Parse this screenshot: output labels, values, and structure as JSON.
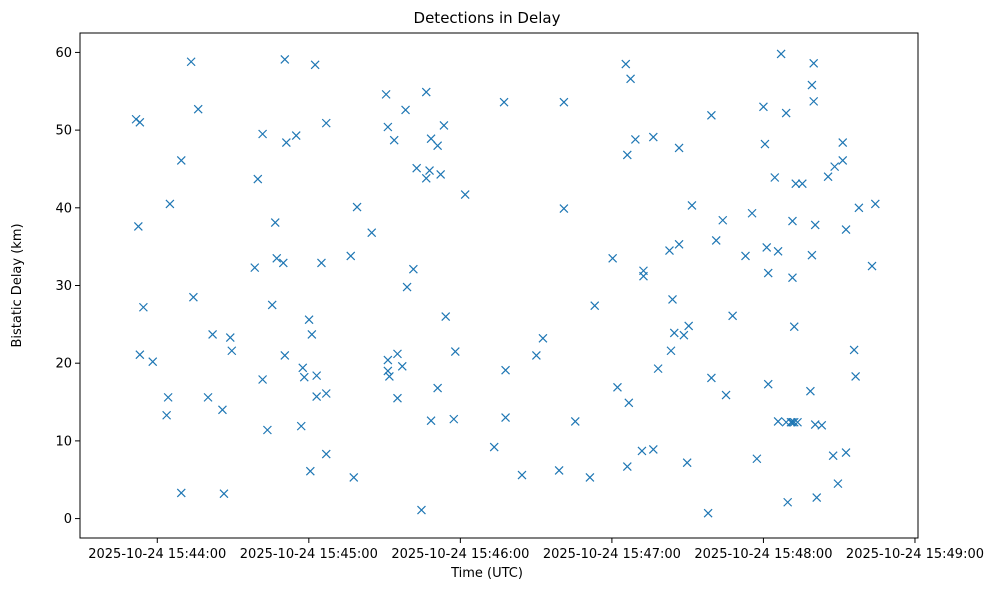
{
  "chart_data": {
    "type": "scatter",
    "title": "Detections in Delay",
    "xlabel": "Time (UTC)",
    "ylabel": "Bistatic Delay (km)",
    "marker": "x",
    "color": "#1f77b4",
    "x_unit": "seconds since 2025-10-24 15:43:00",
    "xlim": [
      29.4,
      361.2
    ],
    "ylim": [
      -2.5,
      62.5
    ],
    "x_ticks": [
      {
        "value": 60,
        "label": "2025-10-24 15:44:00"
      },
      {
        "value": 120,
        "label": "2025-10-24 15:45:00"
      },
      {
        "value": 180,
        "label": "2025-10-24 15:46:00"
      },
      {
        "value": 240,
        "label": "2025-10-24 15:47:00"
      },
      {
        "value": 300,
        "label": "2025-10-24 15:48:00"
      },
      {
        "value": 360,
        "label": "2025-10-24 15:49:00"
      }
    ],
    "y_ticks": [
      {
        "value": 0,
        "label": "0"
      },
      {
        "value": 10,
        "label": "10"
      },
      {
        "value": 20,
        "label": "20"
      },
      {
        "value": 30,
        "label": "30"
      },
      {
        "value": 40,
        "label": "40"
      },
      {
        "value": 50,
        "label": "50"
      },
      {
        "value": 60,
        "label": "60"
      }
    ],
    "points": [
      [
        51.6,
        51.4
      ],
      [
        53.1,
        51.0
      ],
      [
        52.5,
        37.6
      ],
      [
        53.1,
        21.1
      ],
      [
        54.5,
        27.2
      ],
      [
        58.2,
        20.2
      ],
      [
        63.7,
        13.3
      ],
      [
        64.3,
        15.6
      ],
      [
        65.0,
        40.5
      ],
      [
        69.5,
        46.1
      ],
      [
        69.5,
        3.3
      ],
      [
        73.4,
        58.8
      ],
      [
        74.3,
        28.5
      ],
      [
        76.2,
        52.7
      ],
      [
        80.1,
        15.6
      ],
      [
        81.9,
        23.7
      ],
      [
        85.8,
        14.0
      ],
      [
        86.4,
        3.2
      ],
      [
        88.9,
        23.3
      ],
      [
        89.5,
        21.6
      ],
      [
        98.6,
        32.3
      ],
      [
        99.8,
        43.7
      ],
      [
        101.7,
        49.5
      ],
      [
        101.7,
        17.9
      ],
      [
        103.6,
        11.4
      ],
      [
        105.5,
        27.5
      ],
      [
        106.7,
        38.1
      ],
      [
        107.3,
        33.5
      ],
      [
        109.9,
        32.9
      ],
      [
        110.5,
        59.1
      ],
      [
        110.5,
        21.0
      ],
      [
        111.1,
        48.4
      ],
      [
        115.0,
        49.3
      ],
      [
        117.0,
        11.9
      ],
      [
        117.6,
        19.4
      ],
      [
        118.2,
        18.2
      ],
      [
        120.1,
        25.6
      ],
      [
        120.6,
        6.1
      ],
      [
        121.2,
        23.7
      ],
      [
        122.5,
        58.4
      ],
      [
        123.1,
        18.4
      ],
      [
        123.1,
        15.7
      ],
      [
        125.0,
        32.9
      ],
      [
        126.9,
        50.9
      ],
      [
        126.9,
        16.1
      ],
      [
        126.9,
        8.3
      ],
      [
        136.6,
        33.8
      ],
      [
        137.8,
        5.3
      ],
      [
        139.1,
        40.1
      ],
      [
        144.9,
        36.8
      ],
      [
        150.6,
        54.6
      ],
      [
        151.3,
        50.4
      ],
      [
        151.3,
        20.4
      ],
      [
        151.3,
        19.0
      ],
      [
        151.9,
        18.3
      ],
      [
        153.8,
        48.7
      ],
      [
        155.1,
        21.2
      ],
      [
        155.1,
        15.5
      ],
      [
        157.0,
        19.6
      ],
      [
        158.3,
        52.6
      ],
      [
        158.9,
        29.8
      ],
      [
        161.4,
        32.1
      ],
      [
        162.7,
        45.1
      ],
      [
        164.6,
        1.1
      ],
      [
        166.5,
        43.8
      ],
      [
        166.5,
        54.9
      ],
      [
        167.8,
        44.8
      ],
      [
        168.4,
        48.9
      ],
      [
        168.4,
        12.6
      ],
      [
        171.0,
        48.0
      ],
      [
        171.0,
        16.8
      ],
      [
        172.2,
        44.3
      ],
      [
        173.5,
        50.6
      ],
      [
        174.2,
        26.0
      ],
      [
        177.4,
        12.8
      ],
      [
        178.0,
        21.5
      ],
      [
        181.9,
        41.7
      ],
      [
        193.4,
        9.2
      ],
      [
        197.3,
        53.6
      ],
      [
        197.9,
        19.1
      ],
      [
        197.9,
        13.0
      ],
      [
        204.4,
        5.6
      ],
      [
        210.1,
        21.0
      ],
      [
        212.7,
        23.2
      ],
      [
        219.1,
        6.2
      ],
      [
        221.0,
        53.6
      ],
      [
        221.0,
        39.9
      ],
      [
        225.5,
        12.5
      ],
      [
        231.3,
        5.3
      ],
      [
        233.2,
        27.4
      ],
      [
        240.3,
        33.5
      ],
      [
        242.2,
        16.9
      ],
      [
        245.5,
        58.5
      ],
      [
        246.1,
        46.8
      ],
      [
        246.1,
        6.7
      ],
      [
        246.7,
        14.9
      ],
      [
        247.4,
        56.6
      ],
      [
        249.3,
        48.8
      ],
      [
        251.9,
        8.7
      ],
      [
        252.5,
        31.9
      ],
      [
        252.5,
        31.2
      ],
      [
        256.4,
        49.1
      ],
      [
        256.4,
        8.9
      ],
      [
        258.3,
        19.3
      ],
      [
        262.8,
        34.5
      ],
      [
        263.4,
        21.6
      ],
      [
        264.0,
        28.2
      ],
      [
        264.7,
        23.9
      ],
      [
        266.6,
        35.3
      ],
      [
        266.6,
        47.7
      ],
      [
        268.5,
        23.6
      ],
      [
        269.8,
        7.2
      ],
      [
        270.4,
        24.8
      ],
      [
        271.7,
        40.3
      ],
      [
        278.1,
        0.7
      ],
      [
        279.4,
        18.1
      ],
      [
        279.4,
        51.9
      ],
      [
        281.3,
        35.8
      ],
      [
        283.9,
        38.4
      ],
      [
        285.2,
        15.9
      ],
      [
        287.8,
        26.1
      ],
      [
        292.9,
        33.8
      ],
      [
        295.5,
        39.3
      ],
      [
        297.4,
        7.7
      ],
      [
        300.0,
        53.0
      ],
      [
        300.6,
        48.2
      ],
      [
        301.3,
        34.9
      ],
      [
        301.9,
        17.3
      ],
      [
        301.9,
        31.6
      ],
      [
        304.5,
        43.9
      ],
      [
        305.8,
        34.4
      ],
      [
        305.8,
        12.5
      ],
      [
        307.0,
        59.8
      ],
      [
        309.0,
        12.4
      ],
      [
        309.0,
        52.2
      ],
      [
        309.6,
        2.1
      ],
      [
        310.9,
        12.4
      ],
      [
        311.5,
        38.3
      ],
      [
        311.5,
        31.0
      ],
      [
        311.5,
        12.4
      ],
      [
        312.2,
        24.7
      ],
      [
        312.2,
        12.4
      ],
      [
        312.8,
        43.1
      ],
      [
        313.5,
        12.4
      ],
      [
        315.4,
        43.1
      ],
      [
        318.6,
        16.4
      ],
      [
        319.2,
        55.8
      ],
      [
        319.2,
        33.9
      ],
      [
        319.9,
        58.6
      ],
      [
        319.9,
        53.7
      ],
      [
        320.5,
        37.8
      ],
      [
        320.5,
        12.1
      ],
      [
        321.1,
        2.7
      ],
      [
        323.1,
        12.0
      ],
      [
        325.6,
        44.0
      ],
      [
        327.6,
        8.1
      ],
      [
        328.2,
        45.3
      ],
      [
        329.5,
        4.5
      ],
      [
        331.4,
        48.4
      ],
      [
        331.4,
        46.1
      ],
      [
        332.7,
        37.2
      ],
      [
        332.7,
        8.5
      ],
      [
        335.9,
        21.7
      ],
      [
        336.5,
        18.3
      ],
      [
        337.8,
        40.0
      ],
      [
        343.0,
        32.5
      ],
      [
        344.3,
        40.5
      ]
    ]
  }
}
